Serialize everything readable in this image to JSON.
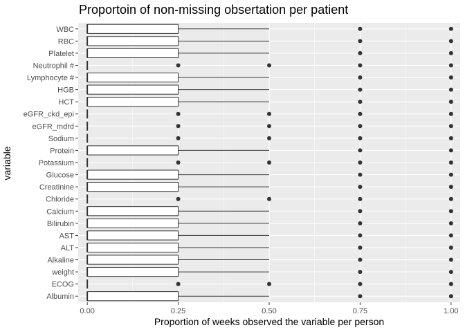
{
  "chart_data": {
    "type": "boxplot",
    "orientation": "horizontal",
    "title": "Proportoin of non-missing obsertation per patient",
    "xlabel": "Proportion of weeks observed the variable per person",
    "ylabel": "variable",
    "xlim": [
      -0.025,
      1.025
    ],
    "xticks": [
      0.0,
      0.25,
      0.5,
      0.75,
      1.0
    ],
    "xtick_labels": [
      "0.00",
      "0.25",
      "0.50",
      "0.75",
      "1.00"
    ],
    "grid": true,
    "colors": {
      "panel_background": "#ebebeb",
      "grid_major": "#ffffff",
      "box_fill": "#ffffff",
      "box_line": "#333333",
      "outlier": "#333333"
    },
    "variables": [
      {
        "name": "WBC",
        "q1": 0,
        "median": 0,
        "q3": 0.25,
        "whisker_low": 0,
        "whisker_high": 0.5,
        "outliers": [
          0.75,
          1.0
        ]
      },
      {
        "name": "RBC",
        "q1": 0,
        "median": 0,
        "q3": 0.25,
        "whisker_low": 0,
        "whisker_high": 0.5,
        "outliers": [
          0.75,
          1.0
        ]
      },
      {
        "name": "Platelet",
        "q1": 0,
        "median": 0,
        "q3": 0.25,
        "whisker_low": 0,
        "whisker_high": 0.5,
        "outliers": [
          0.75,
          1.0
        ]
      },
      {
        "name": "Neutrophil #",
        "q1": 0,
        "median": 0,
        "q3": 0,
        "whisker_low": 0,
        "whisker_high": 0,
        "outliers": [
          0.25,
          0.5,
          0.75,
          1.0
        ]
      },
      {
        "name": "Lymphocyte #",
        "q1": 0,
        "median": 0,
        "q3": 0.25,
        "whisker_low": 0,
        "whisker_high": 0.5,
        "outliers": [
          0.75,
          1.0
        ]
      },
      {
        "name": "HGB",
        "q1": 0,
        "median": 0,
        "q3": 0.25,
        "whisker_low": 0,
        "whisker_high": 0.5,
        "outliers": [
          0.75,
          1.0
        ]
      },
      {
        "name": "HCT",
        "q1": 0,
        "median": 0,
        "q3": 0.25,
        "whisker_low": 0,
        "whisker_high": 0.5,
        "outliers": [
          0.75,
          1.0
        ]
      },
      {
        "name": "eGFR_ckd_epi",
        "q1": 0,
        "median": 0,
        "q3": 0,
        "whisker_low": 0,
        "whisker_high": 0,
        "outliers": [
          0.25,
          0.5,
          0.75,
          1.0
        ]
      },
      {
        "name": "eGFR_mdrd",
        "q1": 0,
        "median": 0,
        "q3": 0,
        "whisker_low": 0,
        "whisker_high": 0,
        "outliers": [
          0.25,
          0.5,
          0.75,
          1.0
        ]
      },
      {
        "name": "Sodium",
        "q1": 0,
        "median": 0,
        "q3": 0,
        "whisker_low": 0,
        "whisker_high": 0,
        "outliers": [
          0.25,
          0.5,
          0.75,
          1.0
        ]
      },
      {
        "name": "Protein",
        "q1": 0,
        "median": 0,
        "q3": 0.25,
        "whisker_low": 0,
        "whisker_high": 0.5,
        "outliers": [
          0.75,
          1.0
        ]
      },
      {
        "name": "Potassium",
        "q1": 0,
        "median": 0,
        "q3": 0,
        "whisker_low": 0,
        "whisker_high": 0,
        "outliers": [
          0.25,
          0.5,
          0.75,
          1.0
        ]
      },
      {
        "name": "Glucose",
        "q1": 0,
        "median": 0,
        "q3": 0.25,
        "whisker_low": 0,
        "whisker_high": 0.5,
        "outliers": [
          0.75,
          1.0
        ]
      },
      {
        "name": "Creatinine",
        "q1": 0,
        "median": 0,
        "q3": 0.25,
        "whisker_low": 0,
        "whisker_high": 0.5,
        "outliers": [
          0.75,
          1.0
        ]
      },
      {
        "name": "Chloride",
        "q1": 0,
        "median": 0,
        "q3": 0,
        "whisker_low": 0,
        "whisker_high": 0,
        "outliers": [
          0.25,
          0.5,
          0.75,
          1.0
        ]
      },
      {
        "name": "Calcium",
        "q1": 0,
        "median": 0,
        "q3": 0.25,
        "whisker_low": 0,
        "whisker_high": 0.5,
        "outliers": [
          0.75,
          1.0
        ]
      },
      {
        "name": "Bilirubin",
        "q1": 0,
        "median": 0,
        "q3": 0.25,
        "whisker_low": 0,
        "whisker_high": 0.5,
        "outliers": [
          0.75,
          1.0
        ]
      },
      {
        "name": "AST",
        "q1": 0,
        "median": 0,
        "q3": 0.25,
        "whisker_low": 0,
        "whisker_high": 0.5,
        "outliers": [
          0.75,
          1.0
        ]
      },
      {
        "name": "ALT",
        "q1": 0,
        "median": 0,
        "q3": 0.25,
        "whisker_low": 0,
        "whisker_high": 0.5,
        "outliers": [
          0.75,
          1.0
        ]
      },
      {
        "name": "Alkaline",
        "q1": 0,
        "median": 0,
        "q3": 0.25,
        "whisker_low": 0,
        "whisker_high": 0.5,
        "outliers": [
          0.75,
          1.0
        ]
      },
      {
        "name": "weight",
        "q1": 0,
        "median": 0,
        "q3": 0.25,
        "whisker_low": 0,
        "whisker_high": 0.5,
        "outliers": [
          0.75,
          1.0
        ]
      },
      {
        "name": "ECOG",
        "q1": 0,
        "median": 0,
        "q3": 0,
        "whisker_low": 0,
        "whisker_high": 0,
        "outliers": [
          0.25,
          0.5,
          0.75,
          1.0
        ]
      },
      {
        "name": "Albumin",
        "q1": 0,
        "median": 0,
        "q3": 0.25,
        "whisker_low": 0,
        "whisker_high": 0.5,
        "outliers": [
          0.75,
          1.0
        ]
      }
    ]
  }
}
